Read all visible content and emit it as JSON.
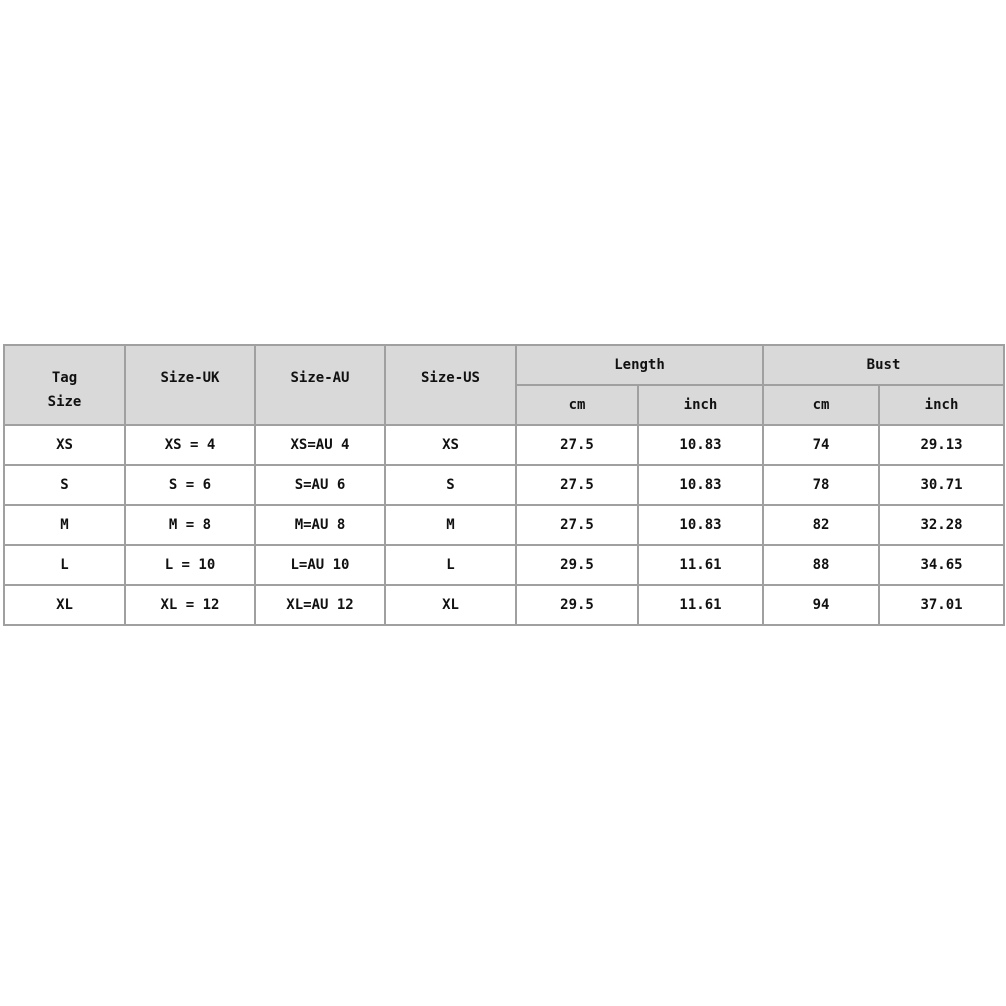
{
  "headers": {
    "tag_size": "Tag\nSize",
    "tag_size_line1": "Tag",
    "tag_size_line2": "Size",
    "size_uk": "Size-UK",
    "size_au": "Size-AU",
    "size_us": "Size-US",
    "length": "Length",
    "bust": "Bust",
    "length_cm": "cm",
    "length_inch": "inch",
    "bust_cm": "cm",
    "bust_inch": "inch"
  },
  "rows": [
    {
      "tag": "XS",
      "uk": "XS = 4",
      "au": "XS=AU 4",
      "us": "XS",
      "length_cm": "27.5",
      "length_inch": "10.83",
      "bust_cm": "74",
      "bust_inch": "29.13"
    },
    {
      "tag": "S",
      "uk": "S = 6",
      "au": "S=AU 6",
      "us": "S",
      "length_cm": "27.5",
      "length_inch": "10.83",
      "bust_cm": "78",
      "bust_inch": "30.71"
    },
    {
      "tag": "M",
      "uk": "M = 8",
      "au": "M=AU 8",
      "us": "M",
      "length_cm": "27.5",
      "length_inch": "10.83",
      "bust_cm": "82",
      "bust_inch": "32.28"
    },
    {
      "tag": "L",
      "uk": "L = 10",
      "au": "L=AU 10",
      "us": "L",
      "length_cm": "29.5",
      "length_inch": "11.61",
      "bust_cm": "88",
      "bust_inch": "34.65"
    },
    {
      "tag": "XL",
      "uk": "XL = 12",
      "au": "XL=AU 12",
      "us": "XL",
      "length_cm": "29.5",
      "length_inch": "11.61",
      "bust_cm": "94",
      "bust_inch": "37.01"
    }
  ],
  "colors": {
    "header_bg": "#d9d9d9",
    "border": "#a0a0a0",
    "text": "#111111"
  }
}
